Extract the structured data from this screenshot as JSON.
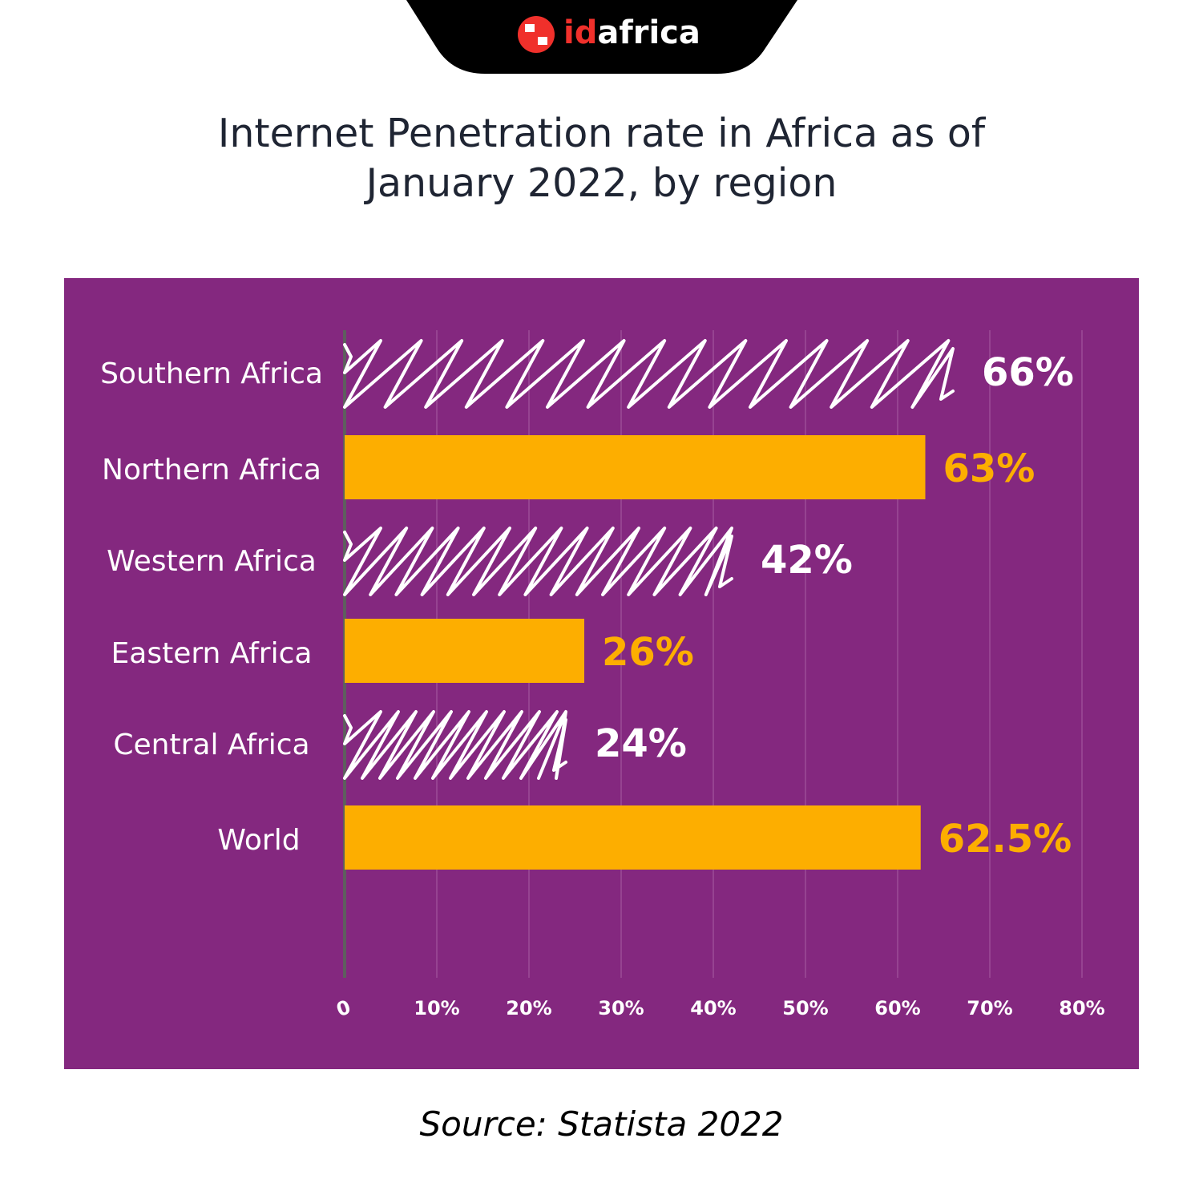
{
  "logo": {
    "text_id": "id",
    "text_rest": "africa"
  },
  "title_line1": "Internet Penetration rate in Africa as of",
  "title_line2": "January 2022, by region",
  "source": "Source: Statista 2022",
  "colors": {
    "background": "#84287f",
    "orange": "#fdae00",
    "white": "#ffffff",
    "logo_red": "#f0302b"
  },
  "chart_data": {
    "type": "bar",
    "orientation": "horizontal",
    "title": "Internet Penetration rate in Africa as of January 2022, by region",
    "categories": [
      "Southern Africa",
      "Northern Africa",
      "Western Africa",
      "Eastern Africa",
      "Central Africa",
      "World"
    ],
    "values": [
      66,
      63,
      42,
      26,
      24,
      62.5
    ],
    "labels": [
      "66%",
      "63%",
      "42%",
      "26%",
      "24%",
      "62.5%"
    ],
    "styles": [
      "hatched-white",
      "solid-orange",
      "hatched-white",
      "solid-orange",
      "hatched-white",
      "solid-orange"
    ],
    "xlim": [
      0,
      80
    ],
    "ticks": [
      "0",
      "10%",
      "20%",
      "30%",
      "40%",
      "50%",
      "60%",
      "70%",
      "80%"
    ],
    "grid": true
  }
}
